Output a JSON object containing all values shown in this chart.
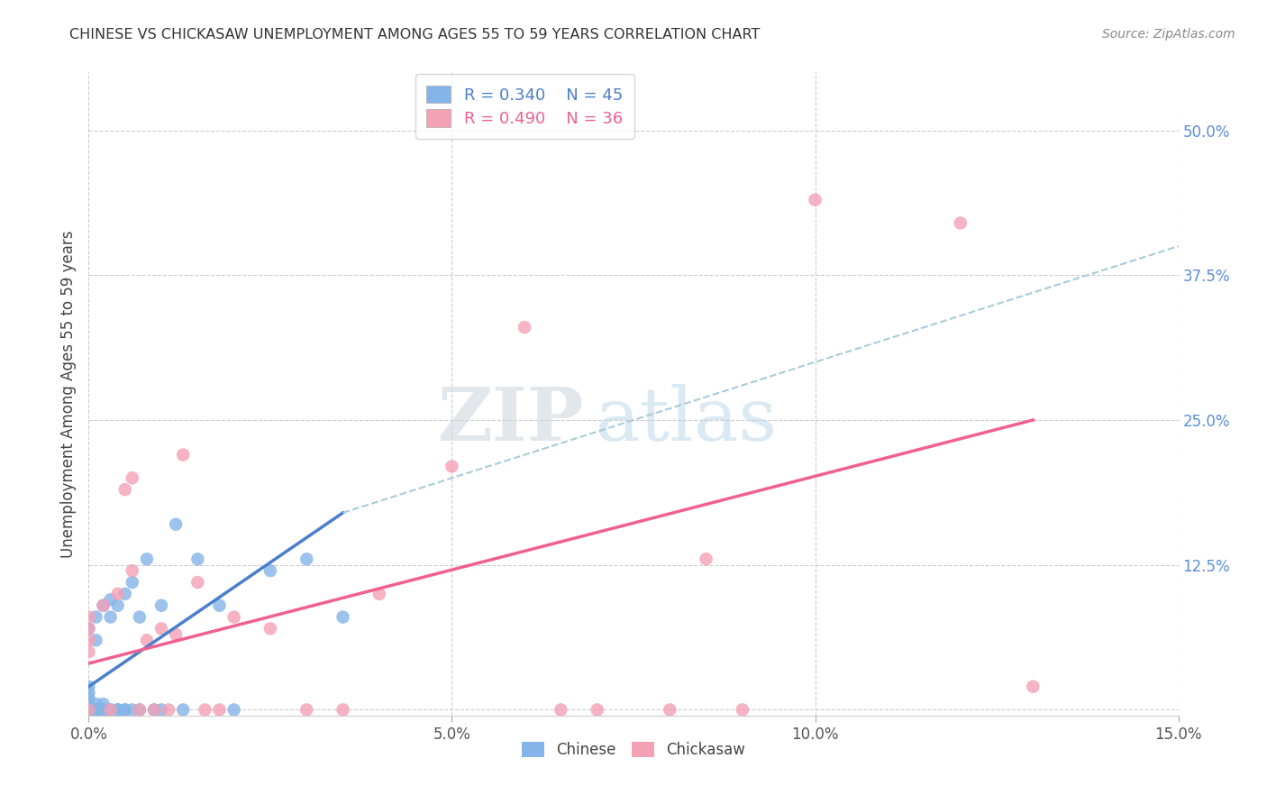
{
  "title": "CHINESE VS CHICKASAW UNEMPLOYMENT AMONG AGES 55 TO 59 YEARS CORRELATION CHART",
  "source": "Source: ZipAtlas.com",
  "ylabel": "Unemployment Among Ages 55 to 59 years",
  "xlim": [
    0.0,
    0.15
  ],
  "ylim": [
    -0.005,
    0.55
  ],
  "xtick_vals": [
    0.0,
    0.05,
    0.1,
    0.15
  ],
  "xticklabels": [
    "0.0%",
    "5.0%",
    "10.0%",
    "15.0%"
  ],
  "right_ytick_vals": [
    0.0,
    0.125,
    0.25,
    0.375,
    0.5
  ],
  "right_yticklabels": [
    "",
    "12.5%",
    "25.0%",
    "37.5%",
    "50.0%"
  ],
  "chinese_color": "#85b5e8",
  "chickasaw_color": "#f4a0b5",
  "chinese_line_color": "#4a7fcc",
  "chickasaw_line_color": "#f06090",
  "dashed_line_color": "#a8ccd8",
  "legend_chinese_R": "R = 0.340",
  "legend_chinese_N": "N = 45",
  "legend_chickasaw_R": "R = 0.490",
  "legend_chickasaw_N": "N = 36",
  "watermark_zip": "ZIP",
  "watermark_atlas": "atlas",
  "background_color": "#ffffff",
  "grid_color": "#cccccc",
  "chinese_x": [
    0.0,
    0.0,
    0.0,
    0.0,
    0.0,
    0.0,
    0.0,
    0.0,
    0.0,
    0.0,
    0.001,
    0.001,
    0.001,
    0.001,
    0.001,
    0.001,
    0.002,
    0.002,
    0.002,
    0.002,
    0.003,
    0.003,
    0.003,
    0.004,
    0.004,
    0.004,
    0.005,
    0.005,
    0.005,
    0.006,
    0.006,
    0.007,
    0.007,
    0.008,
    0.009,
    0.01,
    0.01,
    0.012,
    0.013,
    0.015,
    0.018,
    0.02,
    0.025,
    0.03,
    0.035
  ],
  "chinese_y": [
    0.0,
    0.0,
    0.0,
    0.0,
    0.0,
    0.005,
    0.01,
    0.015,
    0.02,
    0.07,
    0.0,
    0.0,
    0.0,
    0.005,
    0.06,
    0.08,
    0.0,
    0.0,
    0.005,
    0.09,
    0.0,
    0.08,
    0.095,
    0.0,
    0.0,
    0.09,
    0.0,
    0.0,
    0.1,
    0.0,
    0.11,
    0.0,
    0.08,
    0.13,
    0.0,
    0.0,
    0.09,
    0.16,
    0.0,
    0.13,
    0.09,
    0.0,
    0.12,
    0.13,
    0.08
  ],
  "chickasaw_x": [
    0.0,
    0.0,
    0.0,
    0.0,
    0.0,
    0.002,
    0.003,
    0.004,
    0.005,
    0.006,
    0.006,
    0.007,
    0.008,
    0.009,
    0.01,
    0.011,
    0.012,
    0.013,
    0.015,
    0.016,
    0.018,
    0.02,
    0.025,
    0.03,
    0.035,
    0.04,
    0.05,
    0.06,
    0.065,
    0.07,
    0.08,
    0.085,
    0.09,
    0.1,
    0.12,
    0.13
  ],
  "chickasaw_y": [
    0.0,
    0.05,
    0.06,
    0.07,
    0.08,
    0.09,
    0.0,
    0.1,
    0.19,
    0.12,
    0.2,
    0.0,
    0.06,
    0.0,
    0.07,
    0.0,
    0.065,
    0.22,
    0.11,
    0.0,
    0.0,
    0.08,
    0.07,
    0.0,
    0.0,
    0.1,
    0.21,
    0.33,
    0.0,
    0.0,
    0.0,
    0.13,
    0.0,
    0.44,
    0.42,
    0.02
  ],
  "blue_line_x0": 0.0,
  "blue_line_x1": 0.035,
  "blue_line_y0": 0.02,
  "blue_line_y1": 0.17,
  "dashed_line_x0": 0.035,
  "dashed_line_x1": 0.15,
  "dashed_line_y0": 0.17,
  "dashed_line_y1": 0.4,
  "pink_line_x0": 0.0,
  "pink_line_x1": 0.13,
  "pink_line_y0": 0.04,
  "pink_line_y1": 0.25
}
